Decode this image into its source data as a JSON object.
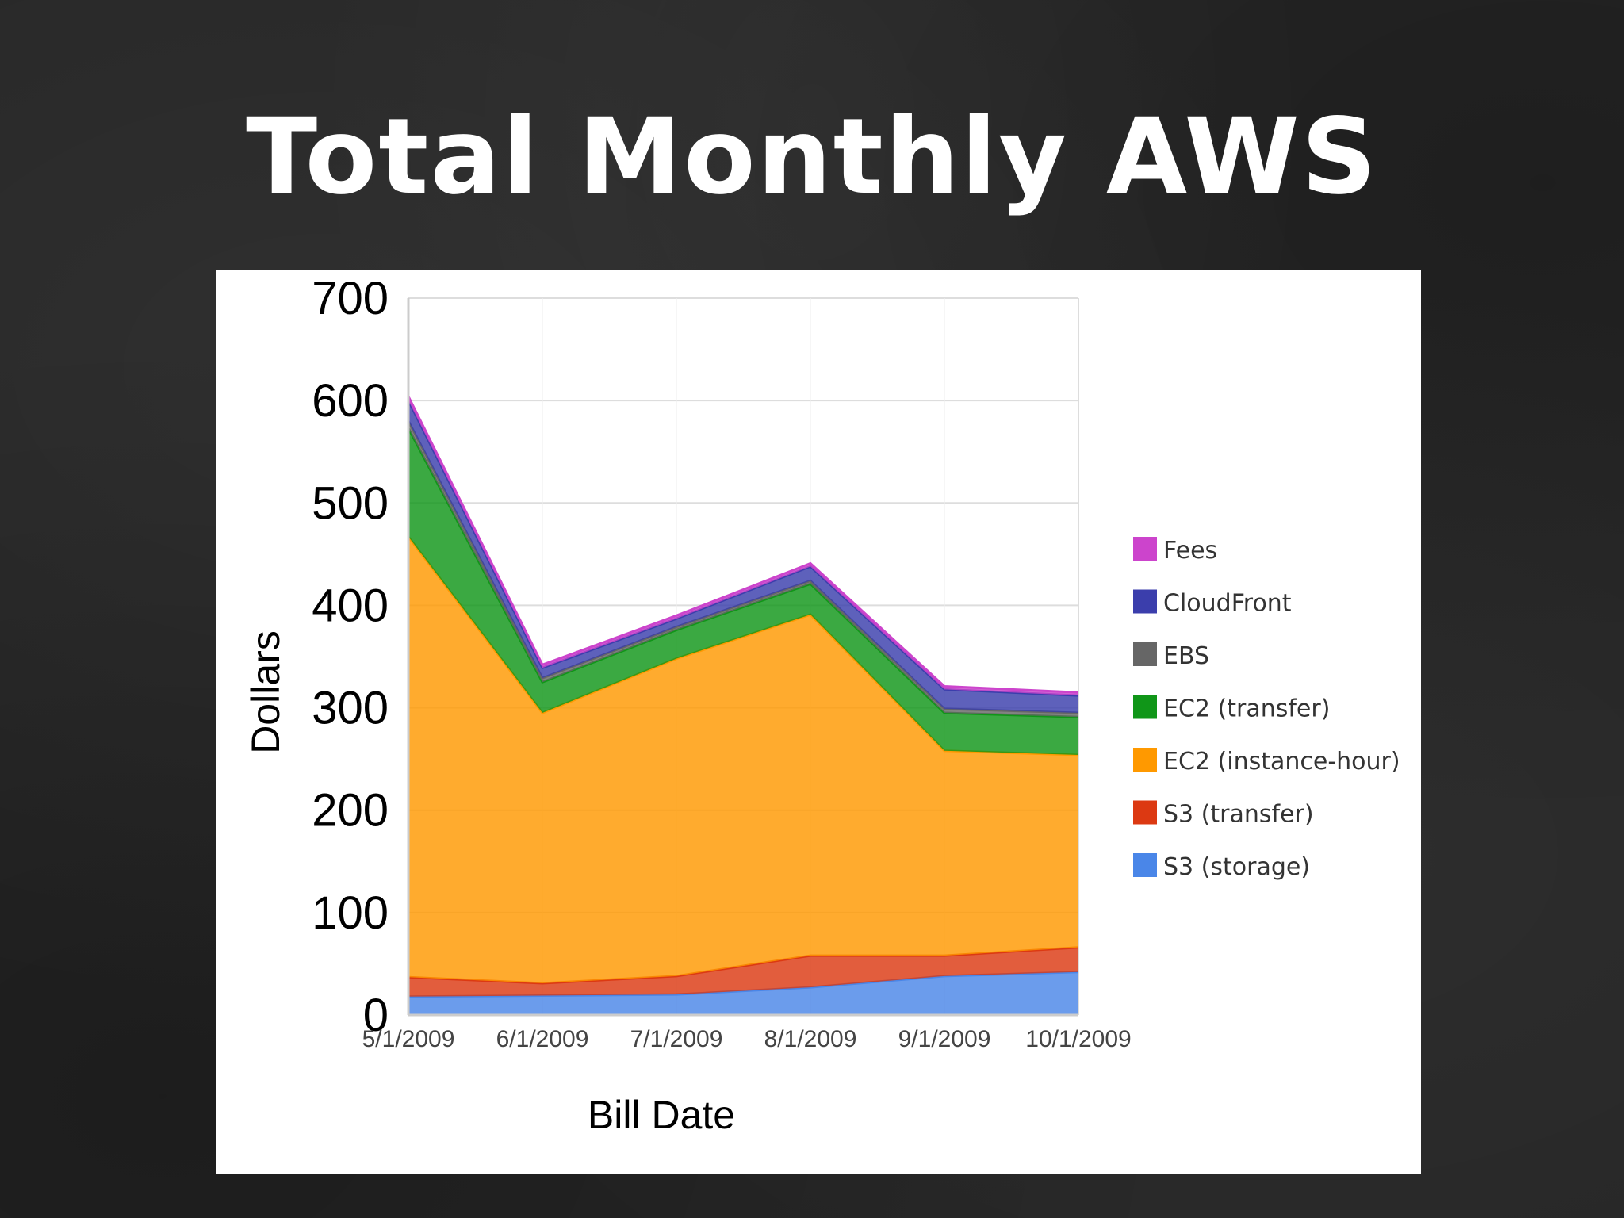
{
  "slide": {
    "title": "Total Monthly AWS"
  },
  "chart_data": {
    "type": "area",
    "stacked": true,
    "xlabel": "Bill Date",
    "ylabel": "Dollars",
    "x": [
      "5/1/2009",
      "6/1/2009",
      "7/1/2009",
      "8/1/2009",
      "9/1/2009",
      "10/1/2009"
    ],
    "ylim": [
      0,
      700
    ],
    "yticks": [
      0,
      100,
      200,
      300,
      400,
      500,
      600,
      700
    ],
    "grid": true,
    "legend_position": "right",
    "series": [
      {
        "name": "S3 (storage)",
        "color": "#4a86e8",
        "values": [
          18,
          19,
          20,
          27,
          38,
          42
        ]
      },
      {
        "name": "S3 (transfer)",
        "color": "#dc3912",
        "values": [
          19,
          12,
          18,
          31,
          20,
          24
        ]
      },
      {
        "name": "EC2 (instance-hour)",
        "color": "#ff9900",
        "values": [
          430,
          264,
          310,
          333,
          200,
          188
        ]
      },
      {
        "name": "EC2 (transfer)",
        "color": "#109618",
        "values": [
          106,
          30,
          28,
          30,
          37,
          37
        ]
      },
      {
        "name": "EBS",
        "color": "#666666",
        "values": [
          7,
          4,
          3,
          3,
          4,
          4
        ]
      },
      {
        "name": "CloudFront",
        "color": "#3b3eac",
        "values": [
          20,
          10,
          8,
          14,
          19,
          17
        ]
      },
      {
        "name": "Fees",
        "color": "#cc44cc",
        "values": [
          4,
          3,
          3,
          3,
          3,
          3
        ]
      }
    ],
    "legend_order": [
      "Fees",
      "CloudFront",
      "EBS",
      "EC2 (transfer)",
      "EC2 (instance-hour)",
      "S3 (transfer)",
      "S3 (storage)"
    ]
  }
}
